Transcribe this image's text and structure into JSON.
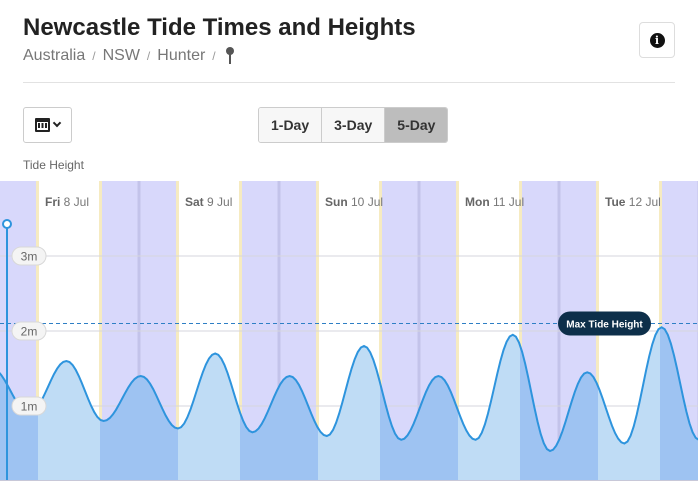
{
  "header": {
    "title_bold": "Newcastle",
    "title_rest": " Tide Times and Heights",
    "breadcrumb": [
      "Australia",
      "NSW",
      "Hunter"
    ],
    "separator": "/"
  },
  "controls": {
    "ranges": [
      "1-Day",
      "3-Day",
      "5-Day"
    ],
    "active_range": "5-Day"
  },
  "chart_data": {
    "type": "area",
    "ylabel": "Tide Height",
    "y_ticks": [
      "3m",
      "2m",
      "1m"
    ],
    "y_tick_values": [
      3,
      2,
      1
    ],
    "day_labels": [
      {
        "wd": "Fri",
        "d": "8 Jul"
      },
      {
        "wd": "Sat",
        "d": "9 Jul"
      },
      {
        "wd": "Sun",
        "d": "10 Jul"
      },
      {
        "wd": "Mon",
        "d": "11 Jul"
      },
      {
        "wd": "Tue",
        "d": "12 Jul"
      }
    ],
    "max_label": "Max Tide Height",
    "max_height": 2.1,
    "extrema": [
      1.5,
      0.9,
      1.6,
      0.8,
      1.4,
      0.7,
      1.7,
      0.65,
      1.4,
      0.6,
      1.8,
      0.55,
      1.4,
      0.55,
      1.95,
      0.4,
      1.45,
      0.5,
      2.05,
      0.55
    ],
    "colors": {
      "line": "#2e94dd",
      "fill_day": "#bfdcf5",
      "fill_night": "#9ec3f2",
      "night_band": "#d8d8fb",
      "day_band": "#ffffff",
      "twilight": "#f6ebc1",
      "max_line": "#2e7fc5",
      "max_badge": "#0d2f4a"
    }
  }
}
